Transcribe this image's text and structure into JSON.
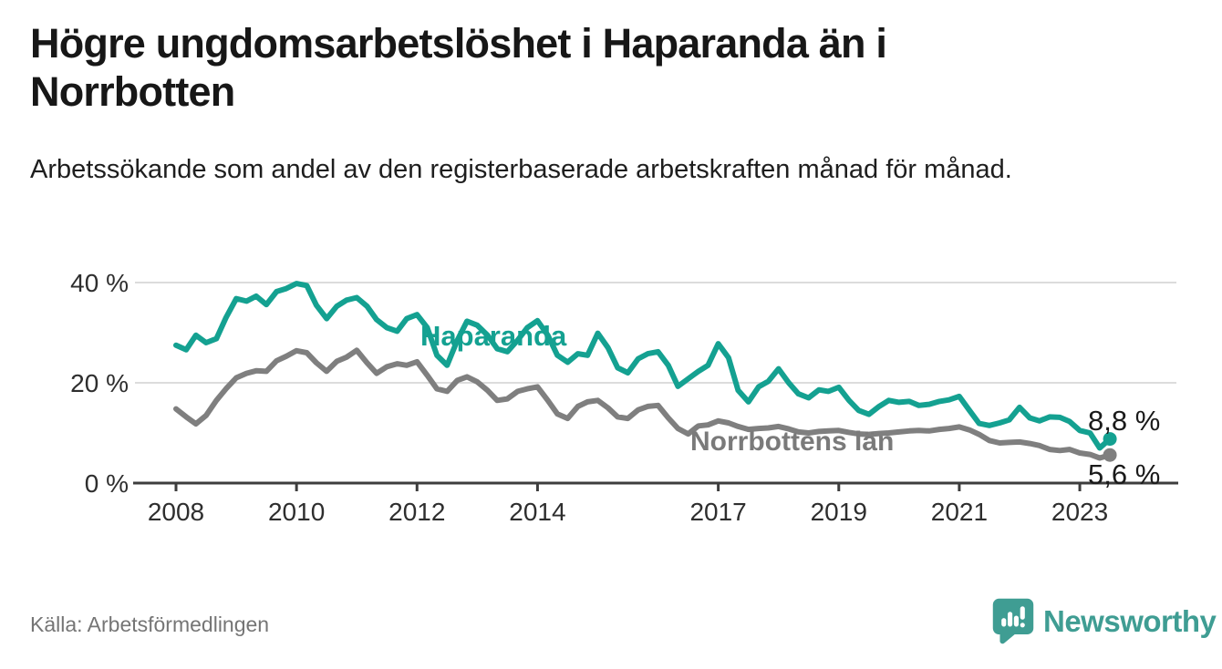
{
  "header": {
    "title": "Högre ungdomsarbetslöshet i Haparanda än i Norrbotten",
    "subtitle": "Arbetssökande som andel av den registerbaserade arbetskraften månad för månad."
  },
  "footer": {
    "source": "Källa: Arbetsförmedlingen",
    "logo_text": "Newsworthy",
    "logo_icon": "newsworthy-speech-bubble-bar-chart-icon"
  },
  "colors": {
    "haparanda": "#14a191",
    "norrbotten": "#7f7f7f",
    "norrbotten_label": "#7a7a7a",
    "axis": "#3d3d3d",
    "grid": "#dcdcdc",
    "tick_text": "#2e2e2e",
    "value_text": "#1a1a1a",
    "muted_text": "#757575",
    "logo": "#3f9d93",
    "background": "#ffffff"
  },
  "chart_data": {
    "type": "line",
    "title": "Högre ungdomsarbetslöshet i Haparanda än i Norrbotten",
    "xlabel": "",
    "ylabel": "",
    "y_unit": "%",
    "grid": "horizontal",
    "legend": "inline-labels",
    "ylim": [
      0,
      44
    ],
    "xlim": [
      2007.3,
      2023.9
    ],
    "x_ticks": [
      "2008",
      "2010",
      "2012",
      "2014",
      "2017",
      "2019",
      "2021",
      "2023"
    ],
    "x_tick_values": [
      2008,
      2010,
      2012,
      2014,
      2017,
      2019,
      2021,
      2023
    ],
    "y_ticks": [
      "0 %",
      "20 %",
      "40 %"
    ],
    "y_tick_values": [
      0,
      20,
      40
    ],
    "x": [
      2008.0,
      2008.17,
      2008.33,
      2008.5,
      2008.67,
      2008.83,
      2009.0,
      2009.17,
      2009.33,
      2009.5,
      2009.67,
      2009.83,
      2010.0,
      2010.17,
      2010.33,
      2010.5,
      2010.67,
      2010.83,
      2011.0,
      2011.17,
      2011.33,
      2011.5,
      2011.67,
      2011.83,
      2012.0,
      2012.17,
      2012.33,
      2012.5,
      2012.67,
      2012.83,
      2013.0,
      2013.17,
      2013.33,
      2013.5,
      2013.67,
      2013.83,
      2014.0,
      2014.17,
      2014.33,
      2014.5,
      2014.67,
      2014.83,
      2015.0,
      2015.17,
      2015.33,
      2015.5,
      2015.67,
      2015.83,
      2016.0,
      2016.17,
      2016.33,
      2016.5,
      2016.67,
      2016.83,
      2017.0,
      2017.17,
      2017.33,
      2017.5,
      2017.67,
      2017.83,
      2018.0,
      2018.17,
      2018.33,
      2018.5,
      2018.67,
      2018.83,
      2019.0,
      2019.17,
      2019.33,
      2019.5,
      2019.67,
      2019.83,
      2020.0,
      2020.17,
      2020.33,
      2020.5,
      2020.67,
      2020.83,
      2021.0,
      2021.17,
      2021.33,
      2021.5,
      2021.67,
      2021.83,
      2022.0,
      2022.17,
      2022.33,
      2022.5,
      2022.67,
      2022.83,
      2023.0,
      2023.17,
      2023.33,
      2023.5
    ],
    "series": [
      {
        "name": "Haparanda",
        "label": "Haparanda",
        "color": "#14a191",
        "end_label": "8,8 %",
        "end_value": 8.8,
        "values": [
          27.5,
          26.6,
          29.5,
          28.0,
          28.8,
          33.0,
          36.8,
          36.3,
          37.3,
          35.6,
          38.2,
          38.8,
          39.8,
          39.4,
          35.5,
          32.8,
          35.3,
          36.5,
          37.0,
          35.3,
          32.6,
          31.0,
          30.3,
          32.8,
          33.6,
          31.0,
          25.5,
          23.5,
          28.5,
          32.3,
          31.5,
          29.5,
          26.8,
          26.2,
          28.5,
          31.0,
          32.4,
          29.5,
          25.5,
          24.1,
          25.8,
          25.5,
          29.9,
          27.0,
          23.0,
          22.0,
          24.8,
          25.8,
          26.2,
          23.5,
          19.3,
          20.8,
          22.3,
          23.5,
          27.8,
          25.0,
          18.5,
          16.2,
          19.2,
          20.3,
          22.8,
          20.0,
          17.8,
          17.0,
          18.6,
          18.3,
          19.1,
          16.5,
          14.5,
          13.7,
          15.3,
          16.5,
          16.1,
          16.3,
          15.5,
          15.7,
          16.3,
          16.6,
          17.3,
          14.5,
          11.9,
          11.5,
          12.0,
          12.6,
          15.1,
          13.0,
          12.4,
          13.2,
          13.1,
          12.3,
          10.5,
          10.0,
          7.0,
          8.8
        ]
      },
      {
        "name": "Norrbottens län",
        "label": "Norrbottens län",
        "color": "#7f7f7f",
        "end_label": "5,6 %",
        "end_value": 5.6,
        "values": [
          14.8,
          13.2,
          11.8,
          13.5,
          16.5,
          18.8,
          21.0,
          21.9,
          22.4,
          22.3,
          24.4,
          25.3,
          26.4,
          26.0,
          24.0,
          22.3,
          24.3,
          25.1,
          26.5,
          24.0,
          21.9,
          23.2,
          23.8,
          23.5,
          24.2,
          21.5,
          18.8,
          18.3,
          20.5,
          21.2,
          20.2,
          18.5,
          16.5,
          16.8,
          18.3,
          18.8,
          19.2,
          16.5,
          13.8,
          12.9,
          15.3,
          16.2,
          16.5,
          15.0,
          13.2,
          12.9,
          14.6,
          15.3,
          15.5,
          13.0,
          10.9,
          9.8,
          11.4,
          11.6,
          12.4,
          12.0,
          11.3,
          10.7,
          10.9,
          11.0,
          11.3,
          10.8,
          10.2,
          10.0,
          10.3,
          10.4,
          10.5,
          10.1,
          9.8,
          9.7,
          9.9,
          10.0,
          10.2,
          10.4,
          10.5,
          10.4,
          10.7,
          10.9,
          11.2,
          10.6,
          9.7,
          8.5,
          8.0,
          8.1,
          8.2,
          7.9,
          7.5,
          6.7,
          6.5,
          6.7,
          6.0,
          5.7,
          5.0,
          5.6
        ]
      }
    ]
  }
}
